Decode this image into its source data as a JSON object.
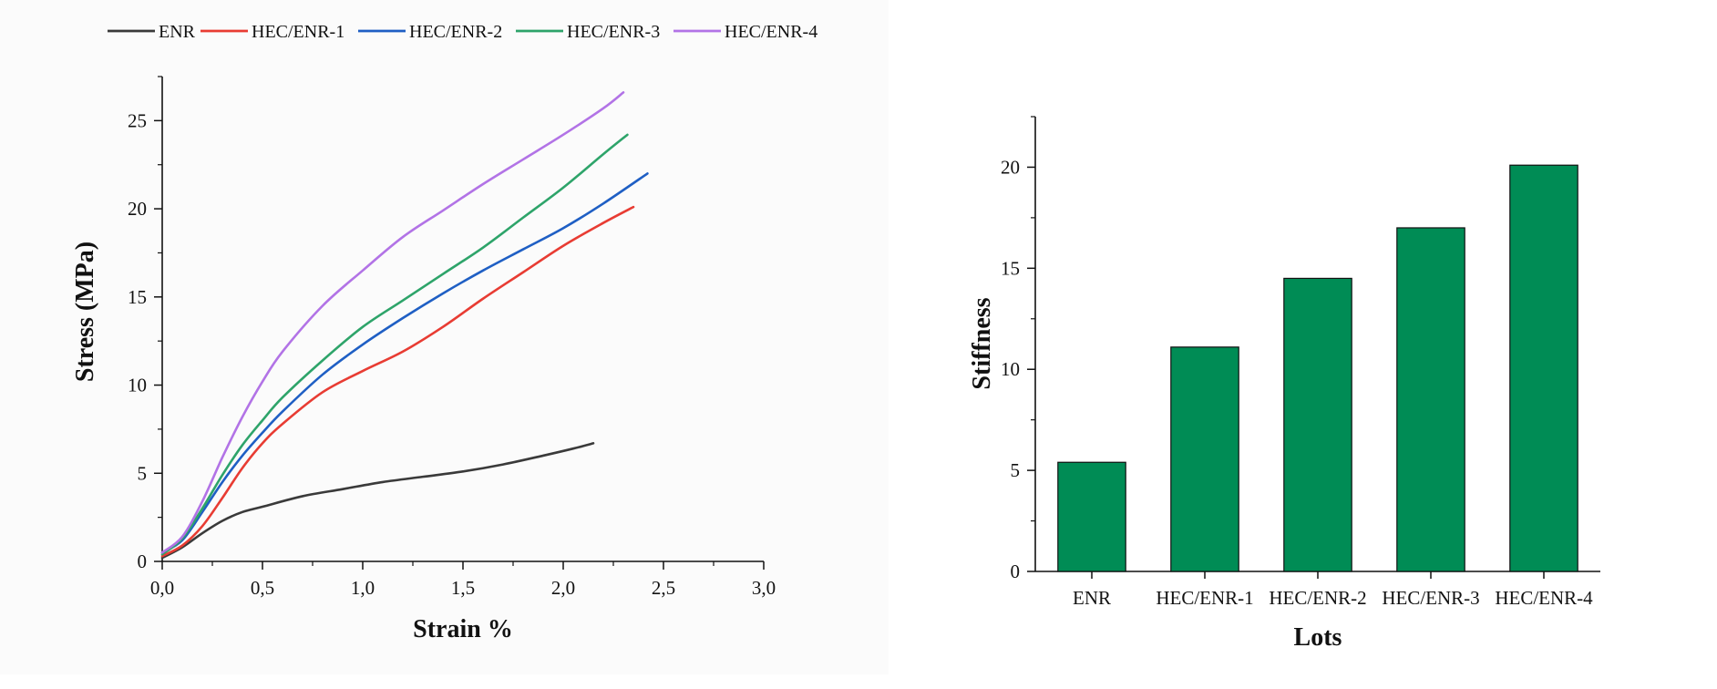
{
  "chart_data": [
    {
      "type": "line",
      "title": "",
      "xlabel": "Strain %",
      "ylabel": "Stress (MPa)",
      "xlim": [
        0,
        3
      ],
      "ylim": [
        0,
        27.5
      ],
      "x_ticks": [
        "0,0",
        "0,5",
        "1,0",
        "1,5",
        "2,0",
        "2,5",
        "3,0"
      ],
      "y_ticks": [
        "0",
        "5",
        "10",
        "15",
        "20",
        "25"
      ],
      "legend_position": "top",
      "series": [
        {
          "name": "ENR",
          "color": "#3a3a3a",
          "x": [
            0,
            0.1,
            0.2,
            0.3,
            0.4,
            0.5,
            0.7,
            0.9,
            1.1,
            1.3,
            1.5,
            1.7,
            1.9,
            2.05,
            2.15
          ],
          "y": [
            0.2,
            0.8,
            1.6,
            2.3,
            2.8,
            3.1,
            3.7,
            4.1,
            4.5,
            4.8,
            5.1,
            5.5,
            6.0,
            6.4,
            6.7
          ]
        },
        {
          "name": "HEC/ENR-1",
          "color": "#e83c33",
          "x": [
            0,
            0.1,
            0.2,
            0.3,
            0.4,
            0.5,
            0.6,
            0.8,
            1.0,
            1.2,
            1.4,
            1.6,
            1.8,
            2.0,
            2.2,
            2.35
          ],
          "y": [
            0.3,
            0.9,
            2.0,
            3.6,
            5.3,
            6.7,
            7.8,
            9.6,
            10.8,
            11.9,
            13.3,
            14.9,
            16.4,
            17.9,
            19.2,
            20.1
          ]
        },
        {
          "name": "HEC/ENR-2",
          "color": "#1f5fc4",
          "x": [
            0,
            0.1,
            0.2,
            0.3,
            0.4,
            0.5,
            0.6,
            0.8,
            1.0,
            1.2,
            1.4,
            1.6,
            1.8,
            2.0,
            2.2,
            2.42
          ],
          "y": [
            0.5,
            1.2,
            2.8,
            4.5,
            6.0,
            7.3,
            8.5,
            10.6,
            12.3,
            13.8,
            15.2,
            16.5,
            17.7,
            18.9,
            20.3,
            22.0
          ]
        },
        {
          "name": "HEC/ENR-3",
          "color": "#2ea46a",
          "x": [
            0,
            0.1,
            0.2,
            0.3,
            0.4,
            0.5,
            0.6,
            0.8,
            1.0,
            1.2,
            1.4,
            1.6,
            1.8,
            2.0,
            2.2,
            2.32
          ],
          "y": [
            0.4,
            1.3,
            3.0,
            4.9,
            6.6,
            8.0,
            9.3,
            11.4,
            13.3,
            14.8,
            16.3,
            17.8,
            19.5,
            21.2,
            23.1,
            24.2
          ]
        },
        {
          "name": "HEC/ENR-4",
          "color": "#b273e6",
          "x": [
            0,
            0.1,
            0.2,
            0.3,
            0.4,
            0.5,
            0.6,
            0.8,
            1.0,
            1.2,
            1.4,
            1.6,
            1.8,
            2.0,
            2.2,
            2.3
          ],
          "y": [
            0.5,
            1.4,
            3.4,
            5.9,
            8.2,
            10.2,
            11.9,
            14.5,
            16.5,
            18.4,
            19.9,
            21.4,
            22.8,
            24.2,
            25.7,
            26.6
          ]
        }
      ]
    },
    {
      "type": "bar",
      "title": "",
      "xlabel": "Lots",
      "ylabel": "Stiffness",
      "ylim": [
        0,
        22.5
      ],
      "y_ticks": [
        "0",
        "5",
        "10",
        "15",
        "20"
      ],
      "categories": [
        "ENR",
        "HEC/ENR-1",
        "HEC/ENR-2",
        "HEC/ENR-3",
        "HEC/ENR-4"
      ],
      "values": [
        5.4,
        11.1,
        14.5,
        17.0,
        20.1
      ],
      "bar_color": "#008c55"
    }
  ]
}
